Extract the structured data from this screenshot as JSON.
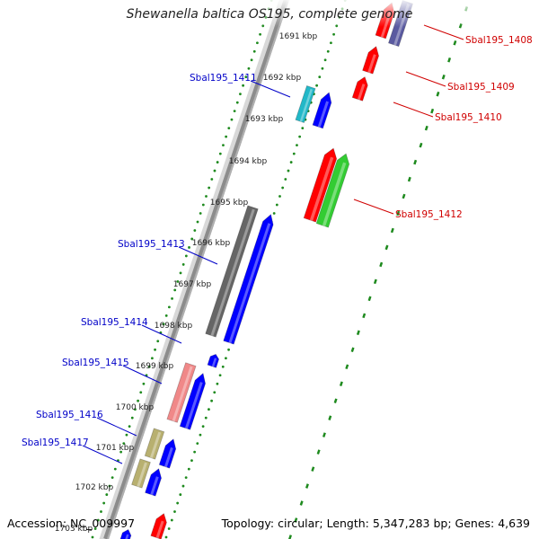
{
  "title": "Shewanella baltica OS195, complete genome",
  "footer": {
    "accession": "Accession: NC_009997",
    "summary": "Topology: circular; Length: 5,347,283 bp; Genes: 4,639"
  },
  "colors": {
    "ruler_dots": "#1e8a1e",
    "backbone": "#8c8c8c",
    "label_blue": "#0000c8",
    "label_red": "#d00000",
    "feature_blue": "#0000ff",
    "feature_red": "#ff0000",
    "feature_green": "#33cc33",
    "feature_gray": "#666666",
    "feature_pink": "#f08888",
    "feature_olive": "#b8b070",
    "feature_cyan": "#22b8c8",
    "feature_purple": "#5a5aa0"
  },
  "kbp_ticks": [
    "1691 kbp",
    "1692 kbp",
    "1693 kbp",
    "1694 kbp",
    "1695 kbp",
    "1696 kbp",
    "1697 kbp",
    "1698 kbp",
    "1699 kbp",
    "1700 kbp",
    "1701 kbp",
    "1702 kbp",
    "1703 kbp"
  ],
  "gene_labels": {
    "left": [
      "Sbal195_1411",
      "Sbal195_1413",
      "Sbal195_1414",
      "Sbal195_1415",
      "Sbal195_1416",
      "Sbal195_1417"
    ],
    "right": [
      "Sbal195_1408",
      "Sbal195_1409",
      "Sbal195_1410",
      "Sbal195_1412"
    ]
  }
}
